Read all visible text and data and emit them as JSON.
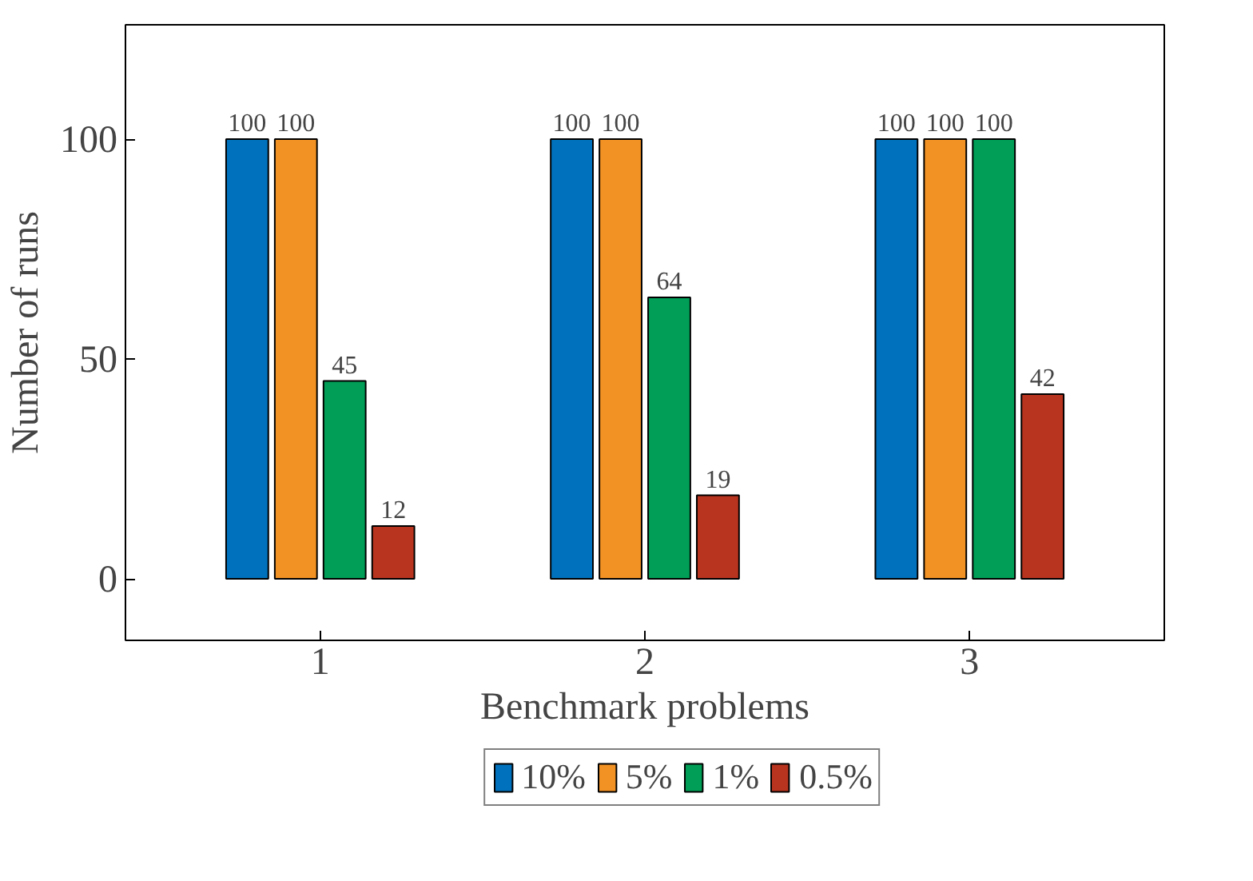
{
  "chart_data": {
    "type": "bar",
    "xlabel": "Benchmark problems",
    "ylabel": "Number of runs",
    "x": [
      1,
      2,
      3
    ],
    "series": [
      {
        "name": "10%",
        "color": "#0072bd",
        "values": [
          100,
          100,
          100
        ]
      },
      {
        "name": "5%",
        "color": "#f39224",
        "values": [
          100,
          100,
          100
        ]
      },
      {
        "name": "1%",
        "color": "#009e56",
        "values": [
          45,
          64,
          100
        ]
      },
      {
        "name": "0.5%",
        "color": "#b8341f",
        "values": [
          12,
          19,
          42
        ]
      }
    ],
    "xlim": [
      0.4,
      3.6
    ],
    "xticks": [
      1,
      2,
      3
    ],
    "ylim": [
      -14,
      126
    ],
    "yticks": [
      0,
      50,
      100
    ],
    "data_labels": true,
    "grid": false,
    "legend": "bottom"
  }
}
